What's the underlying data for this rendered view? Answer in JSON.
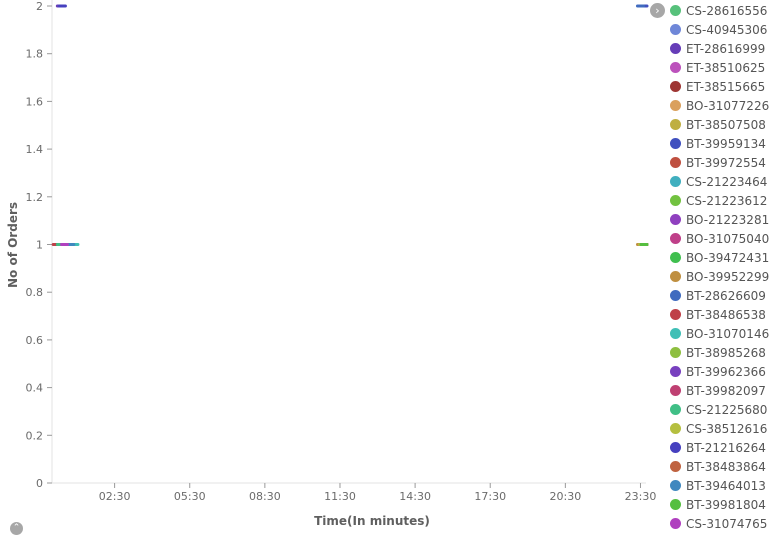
{
  "chart_data": {
    "type": "line",
    "xlabel": "Time(In minutes)",
    "ylabel": "No of Orders",
    "ylim": [
      0,
      2
    ],
    "y_ticks": [
      "0",
      "0.2",
      "0.4",
      "0.6",
      "0.8",
      "1",
      "1.2",
      "1.4",
      "1.6",
      "1.8",
      "2"
    ],
    "x_ticks": [
      "02:30",
      "05:30",
      "08:30",
      "11:30",
      "14:30",
      "17:30",
      "20:30",
      "23:30"
    ],
    "grid": false,
    "legend_position": "right",
    "series": [
      {
        "name": "CS-28616556",
        "color": "#57c17b",
        "values": [
          {
            "x": "00:45",
            "y": 1
          }
        ]
      },
      {
        "name": "CS-40945306",
        "color": "#6f87d8",
        "values": [
          {
            "x": "23:35",
            "y": 1
          }
        ]
      },
      {
        "name": "ET-28616999",
        "color": "#663db8",
        "values": [
          {
            "x": "00:20",
            "y": 2
          }
        ]
      },
      {
        "name": "ET-38510625",
        "color": "#bc52bc",
        "values": [
          {
            "x": "00:35",
            "y": 1
          }
        ]
      },
      {
        "name": "ET-38515665",
        "color": "#9e3533",
        "values": [
          {
            "x": "23:45",
            "y": 1
          }
        ]
      },
      {
        "name": "BO-31077226",
        "color": "#daa05d",
        "values": [
          {
            "x": "00:30",
            "y": 1
          }
        ]
      },
      {
        "name": "BT-38507508",
        "color": "#bfaf40",
        "values": [
          {
            "x": "23:40",
            "y": 1
          }
        ]
      },
      {
        "name": "BT-39959134",
        "color": "#4050bf",
        "values": [
          {
            "x": "23:40",
            "y": 2
          }
        ]
      },
      {
        "name": "BT-39972554",
        "color": "#bf5040",
        "values": [
          {
            "x": "00:25",
            "y": 1
          }
        ]
      },
      {
        "name": "CS-21223464",
        "color": "#40afbf",
        "values": [
          {
            "x": "00:40",
            "y": 1
          }
        ]
      },
      {
        "name": "CS-21223612",
        "color": "#72c240",
        "values": [
          {
            "x": "23:50",
            "y": 1
          }
        ]
      },
      {
        "name": "BO-21223281",
        "color": "#8f40bf",
        "values": [
          {
            "x": "00:15",
            "y": 1
          }
        ]
      },
      {
        "name": "BO-31075040",
        "color": "#bf4089",
        "values": [
          {
            "x": "23:55",
            "y": 1
          }
        ]
      },
      {
        "name": "BO-39472431",
        "color": "#40bf4f",
        "values": [
          {
            "x": "00:50",
            "y": 1
          }
        ]
      },
      {
        "name": "BO-39952299",
        "color": "#bf8f40",
        "values": [
          {
            "x": "23:30",
            "y": 1
          }
        ]
      },
      {
        "name": "BT-28626609",
        "color": "#406bbf",
        "values": [
          {
            "x": "23:30",
            "y": 2
          }
        ]
      },
      {
        "name": "BT-38486538",
        "color": "#bf4048",
        "values": [
          {
            "x": "00:10",
            "y": 1
          }
        ]
      },
      {
        "name": "BO-31070146",
        "color": "#40bfb6",
        "values": [
          {
            "x": "00:55",
            "y": 1
          }
        ]
      },
      {
        "name": "BT-38985268",
        "color": "#8ebf40",
        "values": [
          {
            "x": "23:45",
            "y": 1
          }
        ]
      },
      {
        "name": "BT-39962366",
        "color": "#7840bf",
        "values": [
          {
            "x": "00:35",
            "y": 1
          }
        ]
      },
      {
        "name": "BT-39982097",
        "color": "#bf4072",
        "values": [
          {
            "x": "23:50",
            "y": 1
          }
        ]
      },
      {
        "name": "CS-21225680",
        "color": "#40bf86",
        "values": [
          {
            "x": "00:20",
            "y": 1
          }
        ]
      },
      {
        "name": "CS-38512616",
        "color": "#b5bf40",
        "values": [
          {
            "x": "23:35",
            "y": 1
          }
        ]
      },
      {
        "name": "BT-21216264",
        "color": "#4640bf",
        "values": [
          {
            "x": "00:25",
            "y": 2
          }
        ]
      },
      {
        "name": "BT-38483864",
        "color": "#bf6240",
        "values": [
          {
            "x": "23:55",
            "y": 1
          }
        ]
      },
      {
        "name": "BT-39464013",
        "color": "#4088bf",
        "values": [
          {
            "x": "00:45",
            "y": 1
          }
        ]
      },
      {
        "name": "BT-39981804",
        "color": "#55bf40",
        "values": [
          {
            "x": "23:40",
            "y": 1
          }
        ]
      },
      {
        "name": "CS-31074765",
        "color": "#b040bf",
        "values": [
          {
            "x": "00:30",
            "y": 1
          }
        ]
      }
    ]
  },
  "controls": {
    "legend_toggle_icon": "chevron-right-icon",
    "collapse_icon": "chevron-up-icon"
  }
}
